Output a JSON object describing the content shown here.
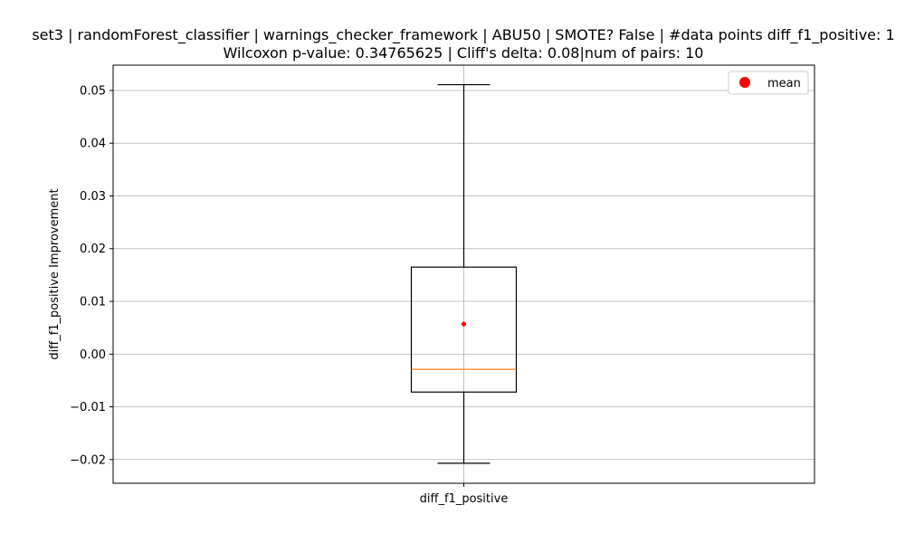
{
  "chart_data": {
    "type": "box",
    "title_line1": "set3 | randomForest_classifier | warnings_checker_framework | ABU50 | SMOTE? False | #data points diff_f1_positive: 1",
    "title_line2": "Wilcoxon p-value: 0.34765625 | Cliff's delta: 0.08|num of pairs: 10",
    "xlabel": "",
    "ylabel": "diff_f1_positive Improvement",
    "categories": [
      "diff_f1_positive"
    ],
    "ylim": [
      -0.0245,
      0.0548
    ],
    "yticks": [
      -0.02,
      -0.01,
      0.0,
      0.01,
      0.02,
      0.03,
      0.04,
      0.05
    ],
    "ytick_labels": [
      "−0.02",
      "−0.01",
      "0.00",
      "0.01",
      "0.02",
      "0.03",
      "0.04",
      "0.05"
    ],
    "grid": true,
    "legend": {
      "placement": "top-right",
      "entries": [
        {
          "label": "mean",
          "color": "#ff0000",
          "marker": "circle"
        }
      ]
    },
    "box": {
      "whisker_low": -0.0207,
      "q1": -0.0072,
      "median": -0.0029,
      "q3": 0.0165,
      "whisker_high": 0.0511,
      "mean": 0.0057
    },
    "colors": {
      "median": "#ff7f0e",
      "mean": "#ff0000",
      "box": "#000000",
      "grid": "#b0b0b0"
    }
  }
}
